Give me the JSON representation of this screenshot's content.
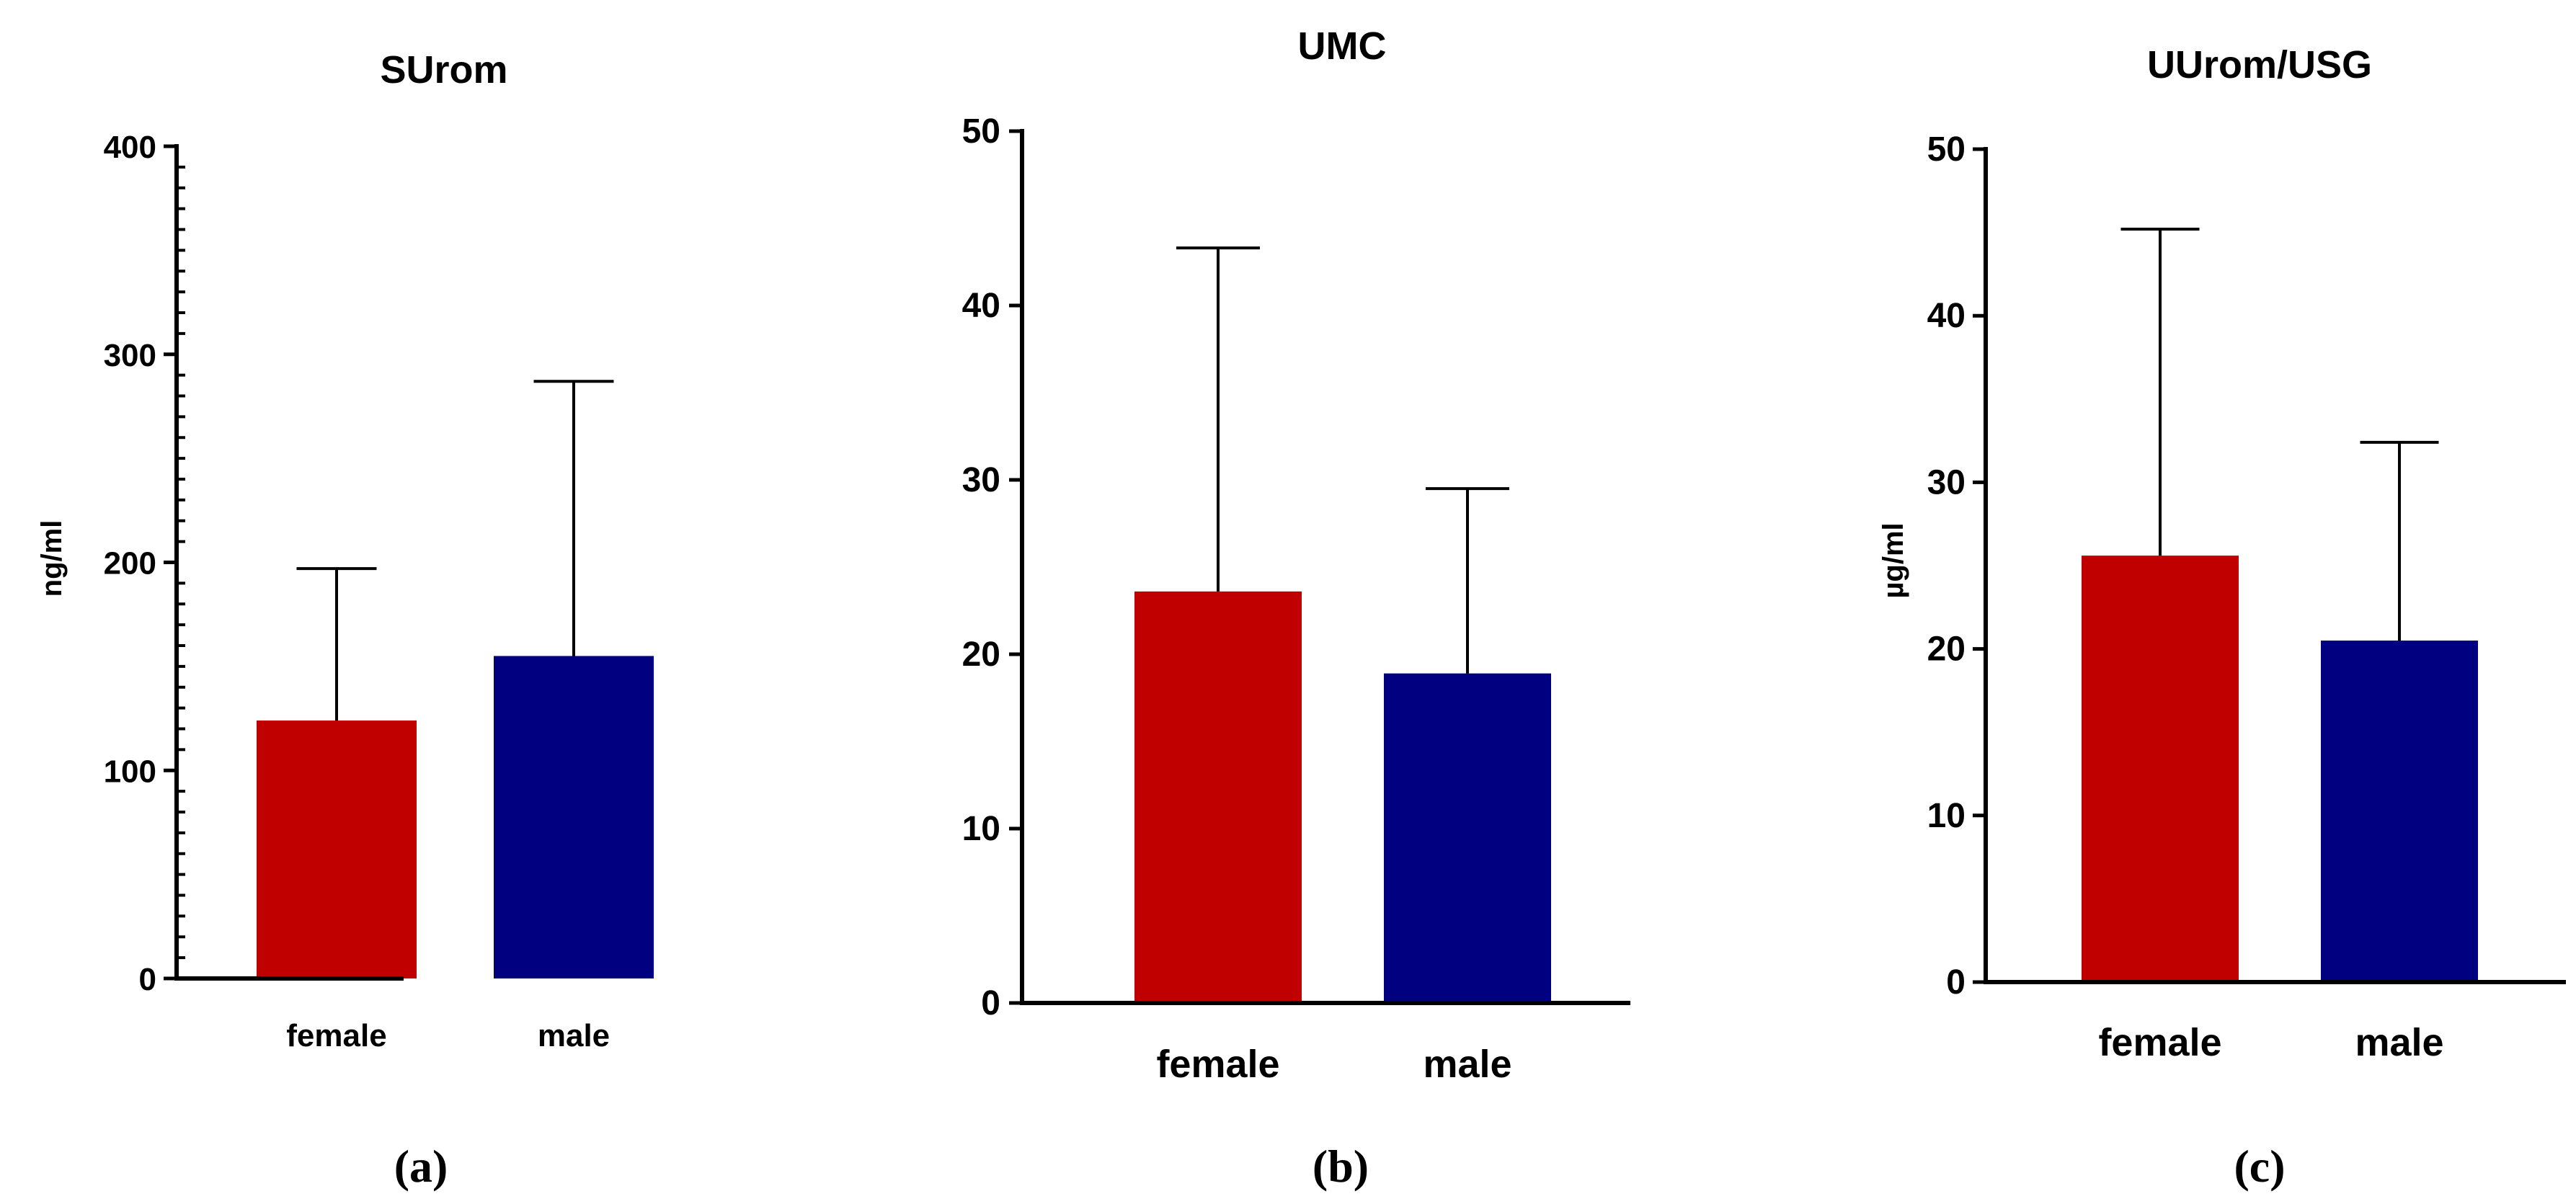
{
  "chart_data": [
    {
      "type": "bar",
      "panel_label": "(a)",
      "title": "SUrom",
      "xlabel": "",
      "ylabel": "ng/ml",
      "ylim": [
        0,
        400
      ],
      "yticks": [
        0,
        100,
        200,
        300,
        400
      ],
      "minor_ticks": true,
      "categories": [
        "female",
        "male"
      ],
      "values": [
        124,
        155
      ],
      "error_upper": [
        197,
        287
      ],
      "colors": [
        "#c00000",
        "#000080"
      ]
    },
    {
      "type": "bar",
      "panel_label": "(b)",
      "title": "UMC",
      "xlabel": "",
      "ylabel": "",
      "ylim": [
        0,
        50
      ],
      "yticks": [
        0,
        10,
        20,
        30,
        40,
        50
      ],
      "minor_ticks": false,
      "categories": [
        "female",
        "male"
      ],
      "values": [
        23.6,
        18.9
      ],
      "error_upper": [
        43.3,
        29.5
      ],
      "colors": [
        "#c00000",
        "#000080"
      ]
    },
    {
      "type": "bar",
      "panel_label": "(c)",
      "title": "UUrom/USG",
      "xlabel": "",
      "ylabel": "µg/ml",
      "ylim": [
        0,
        50
      ],
      "yticks": [
        0,
        10,
        20,
        30,
        40,
        50
      ],
      "minor_ticks": false,
      "categories": [
        "female",
        "male"
      ],
      "values": [
        25.6,
        20.5
      ],
      "error_upper": [
        45.2,
        32.4
      ],
      "colors": [
        "#c00000",
        "#000080"
      ]
    }
  ]
}
